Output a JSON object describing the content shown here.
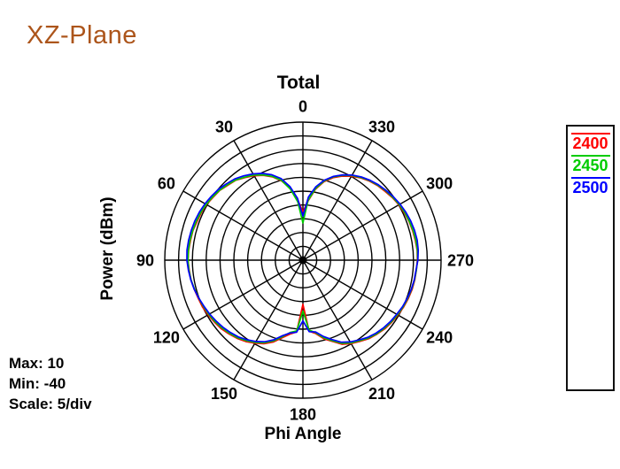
{
  "page": {
    "title": "XZ-Plane",
    "title_color": "#AC551B"
  },
  "chart": {
    "title": "Total",
    "ylabel": "Power  (dBm)",
    "xlabel": "Phi Angle",
    "info": {
      "max": "Max: 10",
      "min": "Min: -40",
      "scale": "Scale: 5/div"
    },
    "legend": [
      {
        "label": "2400",
        "color": "#FF0000"
      },
      {
        "label": "2450",
        "color": "#00CC00"
      },
      {
        "label": "2500",
        "color": "#0000FF"
      }
    ]
  },
  "chart_data": {
    "type": "polar-line",
    "title": "Total",
    "angle_axis": {
      "label": "Phi Angle",
      "unit": "degrees",
      "zero_position": "top",
      "direction": "counterclockwise",
      "ticks": [
        0,
        30,
        60,
        90,
        120,
        150,
        180,
        210,
        240,
        270,
        300,
        330
      ]
    },
    "radial_axis": {
      "label": "Power (dBm)",
      "max": 10,
      "min": -40,
      "divisions": 10,
      "scale_per_div": 5
    },
    "grid": {
      "rings": 10,
      "spoke_step_deg": 30,
      "color": "#000000"
    },
    "series": [
      {
        "name": "2400",
        "color": "#FF0000",
        "points": [
          [
            0,
            -22.5
          ],
          [
            5,
            -18.0
          ],
          [
            10,
            -13.6
          ],
          [
            15,
            -10.3
          ],
          [
            20,
            -7.9
          ],
          [
            25,
            -6.1
          ],
          [
            30,
            -4.7
          ],
          [
            35,
            -3.5
          ],
          [
            40,
            -2.2
          ],
          [
            45,
            -1.6
          ],
          [
            50,
            -0.7
          ],
          [
            55,
            -0.3
          ],
          [
            60,
            0.3
          ],
          [
            65,
            0.6
          ],
          [
            70,
            0.8
          ],
          [
            75,
            1.2
          ],
          [
            80,
            1.3
          ],
          [
            85,
            1.5
          ],
          [
            90,
            1.6
          ],
          [
            95,
            1.3
          ],
          [
            100,
            1.1
          ],
          [
            105,
            0.7
          ],
          [
            110,
            0.3
          ],
          [
            115,
            0.1
          ],
          [
            120,
            -0.4
          ],
          [
            125,
            -0.9
          ],
          [
            130,
            -1.4
          ],
          [
            135,
            -2.2
          ],
          [
            140,
            -3.0
          ],
          [
            145,
            -4.0
          ],
          [
            150,
            -5.3
          ],
          [
            155,
            -6.6
          ],
          [
            160,
            -8.4
          ],
          [
            165,
            -10.9
          ],
          [
            170,
            -12.8
          ],
          [
            175,
            -13.9
          ],
          [
            180,
            -24.0
          ],
          [
            185,
            -14.2
          ],
          [
            190,
            -13.0
          ],
          [
            195,
            -10.5
          ],
          [
            200,
            -8.7
          ],
          [
            205,
            -6.4
          ],
          [
            210,
            -5.1
          ],
          [
            215,
            -4.1
          ],
          [
            220,
            -2.9
          ],
          [
            225,
            -2.1
          ],
          [
            230,
            -1.3
          ],
          [
            235,
            -0.8
          ],
          [
            240,
            -0.3
          ],
          [
            245,
            0.2
          ],
          [
            250,
            0.6
          ],
          [
            255,
            0.9
          ],
          [
            260,
            1.1
          ],
          [
            265,
            1.2
          ],
          [
            270,
            1.4
          ],
          [
            275,
            1.5
          ],
          [
            280,
            1.3
          ],
          [
            285,
            1.1
          ],
          [
            290,
            0.9
          ],
          [
            295,
            0.5
          ],
          [
            300,
            0.1
          ],
          [
            305,
            -0.5
          ],
          [
            310,
            -1.2
          ],
          [
            315,
            -1.8
          ],
          [
            320,
            -2.6
          ],
          [
            325,
            -3.6
          ],
          [
            330,
            -4.9
          ],
          [
            335,
            -6.4
          ],
          [
            340,
            -8.2
          ],
          [
            345,
            -10.6
          ],
          [
            350,
            -13.9
          ],
          [
            355,
            -18.5
          ]
        ]
      },
      {
        "name": "2450",
        "color": "#00CC00",
        "points": [
          [
            0,
            -26.5
          ],
          [
            5,
            -18.8
          ],
          [
            10,
            -13.9
          ],
          [
            15,
            -10.1
          ],
          [
            20,
            -7.7
          ],
          [
            25,
            -5.9
          ],
          [
            30,
            -4.4
          ],
          [
            35,
            -3.3
          ],
          [
            40,
            -2.1
          ],
          [
            45,
            -1.4
          ],
          [
            50,
            -0.6
          ],
          [
            55,
            -0.1
          ],
          [
            60,
            0.4
          ],
          [
            65,
            0.8
          ],
          [
            70,
            1.1
          ],
          [
            75,
            1.3
          ],
          [
            80,
            1.5
          ],
          [
            85,
            1.6
          ],
          [
            90,
            1.6
          ],
          [
            95,
            1.4
          ],
          [
            100,
            1.1
          ],
          [
            105,
            0.6
          ],
          [
            110,
            0.1
          ],
          [
            115,
            -0.3
          ],
          [
            120,
            -0.7
          ],
          [
            125,
            -1.2
          ],
          [
            130,
            -1.8
          ],
          [
            135,
            -2.5
          ],
          [
            140,
            -3.3
          ],
          [
            145,
            -4.4
          ],
          [
            150,
            -5.6
          ],
          [
            155,
            -7.0
          ],
          [
            160,
            -8.9
          ],
          [
            165,
            -11.3
          ],
          [
            170,
            -13.4
          ],
          [
            175,
            -14.3
          ],
          [
            180,
            -21.5
          ],
          [
            185,
            -14.6
          ],
          [
            190,
            -13.3
          ],
          [
            195,
            -10.9
          ],
          [
            200,
            -9.0
          ],
          [
            205,
            -6.8
          ],
          [
            210,
            -5.4
          ],
          [
            215,
            -4.4
          ],
          [
            220,
            -3.2
          ],
          [
            225,
            -2.3
          ],
          [
            230,
            -1.6
          ],
          [
            235,
            -1.0
          ],
          [
            240,
            -0.5
          ],
          [
            245,
            0.0
          ],
          [
            250,
            0.4
          ],
          [
            255,
            0.7
          ],
          [
            260,
            1.0
          ],
          [
            265,
            1.2
          ],
          [
            270,
            1.5
          ],
          [
            275,
            1.6
          ],
          [
            280,
            1.5
          ],
          [
            285,
            1.3
          ],
          [
            290,
            1.0
          ],
          [
            295,
            0.7
          ],
          [
            300,
            0.3
          ],
          [
            305,
            -0.3
          ],
          [
            310,
            -0.9
          ],
          [
            315,
            -1.6
          ],
          [
            320,
            -2.4
          ],
          [
            325,
            -3.4
          ],
          [
            330,
            -4.6
          ],
          [
            335,
            -6.1
          ],
          [
            340,
            -7.9
          ],
          [
            345,
            -10.3
          ],
          [
            350,
            -13.6
          ],
          [
            355,
            -18.2
          ]
        ]
      },
      {
        "name": "2500",
        "color": "#0000FF",
        "points": [
          [
            0,
            -24.0
          ],
          [
            5,
            -17.5
          ],
          [
            10,
            -12.9
          ],
          [
            15,
            -9.4
          ],
          [
            20,
            -7.1
          ],
          [
            25,
            -5.3
          ],
          [
            30,
            -3.9
          ],
          [
            35,
            -2.7
          ],
          [
            40,
            -1.6
          ],
          [
            45,
            -0.9
          ],
          [
            50,
            -0.1
          ],
          [
            55,
            0.4
          ],
          [
            60,
            0.9
          ],
          [
            65,
            1.3
          ],
          [
            70,
            1.6
          ],
          [
            75,
            1.8
          ],
          [
            80,
            2.0
          ],
          [
            85,
            2.1
          ],
          [
            90,
            2.0
          ],
          [
            95,
            1.6
          ],
          [
            100,
            1.2
          ],
          [
            105,
            0.7
          ],
          [
            110,
            0.1
          ],
          [
            115,
            -0.5
          ],
          [
            120,
            -1.0
          ],
          [
            125,
            -1.6
          ],
          [
            130,
            -2.2
          ],
          [
            135,
            -2.9
          ],
          [
            140,
            -3.7
          ],
          [
            145,
            -4.8
          ],
          [
            150,
            -6.0
          ],
          [
            155,
            -7.4
          ],
          [
            160,
            -9.3
          ],
          [
            165,
            -11.7
          ],
          [
            170,
            -13.2
          ],
          [
            175,
            -13.8
          ],
          [
            180,
            -18.0
          ],
          [
            185,
            -14.0
          ],
          [
            190,
            -13.6
          ],
          [
            195,
            -11.4
          ],
          [
            200,
            -9.4
          ],
          [
            205,
            -7.2
          ],
          [
            210,
            -5.8
          ],
          [
            215,
            -4.7
          ],
          [
            220,
            -3.5
          ],
          [
            225,
            -2.6
          ],
          [
            230,
            -1.9
          ],
          [
            235,
            -1.3
          ],
          [
            240,
            -0.8
          ],
          [
            245,
            -0.2
          ],
          [
            250,
            0.2
          ],
          [
            255,
            0.6
          ],
          [
            260,
            0.9
          ],
          [
            265,
            1.1
          ],
          [
            270,
            1.6
          ],
          [
            275,
            1.9
          ],
          [
            280,
            2.0
          ],
          [
            285,
            1.8
          ],
          [
            290,
            1.5
          ],
          [
            295,
            1.1
          ],
          [
            300,
            0.6
          ],
          [
            305,
            0.0
          ],
          [
            310,
            -0.7
          ],
          [
            315,
            -1.4
          ],
          [
            320,
            -2.2
          ],
          [
            325,
            -3.2
          ],
          [
            330,
            -4.4
          ],
          [
            335,
            -5.9
          ],
          [
            340,
            -7.7
          ],
          [
            345,
            -10.0
          ],
          [
            350,
            -13.0
          ],
          [
            355,
            -17.0
          ]
        ]
      }
    ]
  }
}
